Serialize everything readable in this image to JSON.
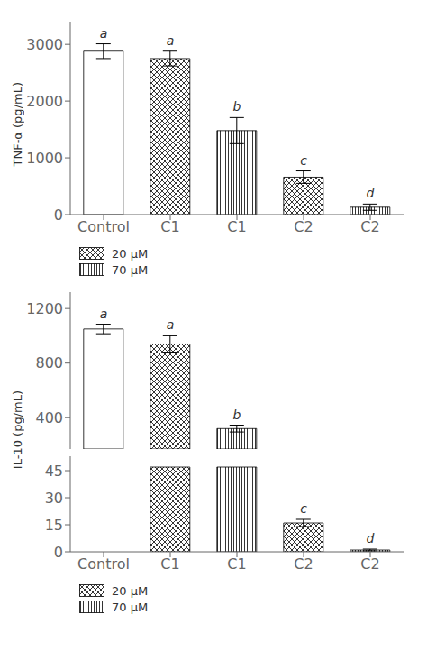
{
  "chart_data": [
    {
      "type": "bar",
      "ylabel": "TNF-α (pg/mL)",
      "categories": [
        "Control",
        "C1",
        "C1",
        "C2",
        "C2"
      ],
      "series": [
        {
          "color": "#000000",
          "values": [
            2880,
            null,
            null,
            null,
            null
          ],
          "errors": [
            130,
            null,
            null,
            null,
            null
          ]
        },
        {
          "name": "20 μM",
          "color": "#000000",
          "values": [
            null,
            2750,
            null,
            660,
            null
          ],
          "errors": [
            null,
            130,
            null,
            110,
            null
          ]
        },
        {
          "name": "70 μM",
          "color": "#000000",
          "values": [
            null,
            null,
            1480,
            null,
            130
          ],
          "errors": [
            null,
            null,
            230,
            null,
            55
          ]
        }
      ],
      "annotations": [
        "a",
        "a",
        "b",
        "c",
        "d"
      ],
      "ylim": [
        0,
        3400
      ],
      "yticks": [
        0,
        1000,
        2000,
        3000
      ],
      "legend": "bottom"
    },
    {
      "type": "bar",
      "ylabel": "IL-10 (pg/mL)",
      "tick_labels": "y",
      "series": [
        {
          "color": "#000000",
          "values": [
            1050,
            null,
            null,
            null,
            null
          ],
          "errors": [
            35,
            null,
            null,
            null,
            null
          ]
        },
        {
          "color": "#000000",
          "values": [
            null,
            940,
            null,
            null,
            null
          ],
          "errors": [
            null,
            60,
            null,
            null,
            null
          ]
        },
        {
          "color": "#000000",
          "values": [
            null,
            null,
            320,
            null,
            null
          ],
          "errors": [
            null,
            null,
            25,
            null,
            null
          ]
        }
      ],
      "annotations": [
        "a",
        "a",
        "b",
        null,
        null
      ],
      "ylim": [
        170,
        1320
      ],
      "yticks": [
        400,
        800,
        1200
      ]
    },
    {
      "type": "bar",
      "categories": [
        "Control",
        "C1",
        "C1",
        "C2",
        "C2"
      ],
      "series": [
        {
          "color": "#000000",
          "values": [
            0,
            null,
            null,
            null,
            null
          ],
          "errors": [
            null,
            null,
            null,
            null,
            null
          ]
        },
        {
          "name": "20 μM",
          "color": "#000000",
          "values": [
            null,
            47,
            null,
            16,
            null
          ],
          "errors": [
            null,
            null,
            null,
            2,
            null
          ]
        },
        {
          "name": "70 μM",
          "color": "#000000",
          "values": [
            null,
            null,
            47,
            null,
            1.0
          ],
          "errors": [
            null,
            null,
            null,
            null,
            0.5
          ]
        }
      ],
      "annotations": [
        null,
        null,
        null,
        "c",
        "d"
      ],
      "ylim": [
        0,
        53
      ],
      "yticks": [
        0,
        15,
        30,
        45
      ],
      "legend": "bottom"
    }
  ]
}
